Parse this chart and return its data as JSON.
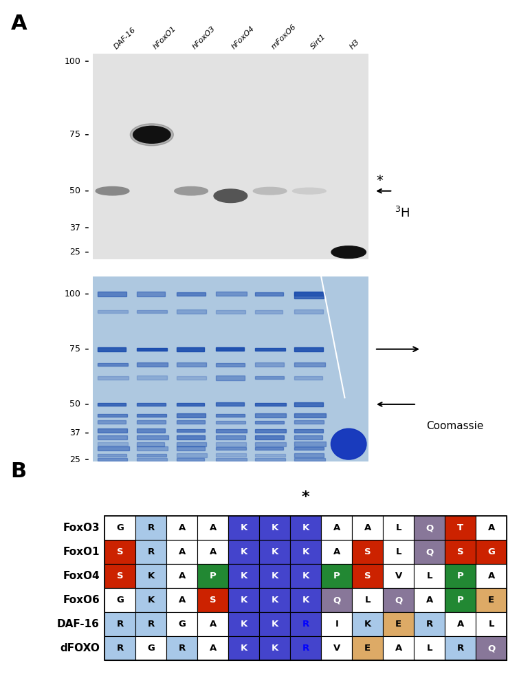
{
  "rows": [
    "FoxO3",
    "FoxO1",
    "FoxO4",
    "FoxO6",
    "DAF-16",
    "dFOXO"
  ],
  "cols": 13,
  "letters": [
    [
      "G",
      "R",
      "A",
      "A",
      "K",
      "K",
      "K",
      "A",
      "A",
      "L",
      "Q",
      "T",
      "A"
    ],
    [
      "S",
      "R",
      "A",
      "A",
      "K",
      "K",
      "K",
      "A",
      "S",
      "L",
      "Q",
      "S",
      "G"
    ],
    [
      "S",
      "K",
      "A",
      "P",
      "K",
      "K",
      "K",
      "P",
      "S",
      "V",
      "L",
      "P",
      "A"
    ],
    [
      "G",
      "K",
      "A",
      "S",
      "K",
      "K",
      "K",
      "Q",
      "L",
      "Q",
      "A",
      "P",
      "E"
    ],
    [
      "R",
      "R",
      "G",
      "A",
      "K",
      "K",
      "R",
      "I",
      "K",
      "E",
      "R",
      "A",
      "L"
    ],
    [
      "R",
      "G",
      "R",
      "A",
      "K",
      "K",
      "R",
      "V",
      "E",
      "A",
      "L",
      "R",
      "Q"
    ]
  ],
  "colors": [
    [
      "white",
      "lightblue",
      "white",
      "white",
      "blue",
      "blue",
      "blue",
      "white",
      "white",
      "white",
      "purple",
      "red",
      "white"
    ],
    [
      "red",
      "lightblue",
      "white",
      "white",
      "blue",
      "blue",
      "blue",
      "white",
      "red",
      "white",
      "purple",
      "red",
      "red"
    ],
    [
      "red",
      "lightblue",
      "white",
      "green",
      "blue",
      "blue",
      "blue",
      "green",
      "red",
      "white",
      "white",
      "green",
      "white"
    ],
    [
      "white",
      "lightblue",
      "white",
      "red",
      "blue",
      "blue",
      "blue",
      "purple",
      "white",
      "purple",
      "white",
      "green",
      "orange"
    ],
    [
      "lightblue",
      "lightblue",
      "white",
      "white",
      "blue",
      "blue",
      "blue",
      "white",
      "lightblue",
      "orange",
      "lightblue",
      "white",
      "white"
    ],
    [
      "lightblue",
      "white",
      "lightblue",
      "white",
      "blue",
      "blue",
      "blue",
      "white",
      "orange",
      "white",
      "white",
      "lightblue",
      "purple"
    ]
  ],
  "color_map": {
    "white": "#ffffff",
    "lightblue": "#a8c8e8",
    "blue": "#4444cc",
    "red": "#cc2200",
    "green": "#228833",
    "purple": "#887799",
    "orange": "#ddaa66"
  },
  "text_colors": [
    [
      "black",
      "black",
      "black",
      "black",
      "white",
      "white",
      "white",
      "black",
      "black",
      "black",
      "white",
      "white",
      "black"
    ],
    [
      "white",
      "black",
      "black",
      "black",
      "white",
      "white",
      "white",
      "black",
      "white",
      "black",
      "white",
      "white",
      "white"
    ],
    [
      "white",
      "black",
      "black",
      "white",
      "white",
      "white",
      "white",
      "white",
      "white",
      "black",
      "black",
      "white",
      "black"
    ],
    [
      "black",
      "black",
      "black",
      "white",
      "white",
      "white",
      "white",
      "white",
      "black",
      "white",
      "black",
      "white",
      "black"
    ],
    [
      "black",
      "black",
      "black",
      "black",
      "white",
      "white",
      "blue",
      "black",
      "black",
      "black",
      "black",
      "black",
      "black"
    ],
    [
      "black",
      "black",
      "black",
      "black",
      "white",
      "white",
      "blue",
      "black",
      "black",
      "black",
      "black",
      "black",
      "white"
    ]
  ],
  "lane_labels": [
    "DAF-16",
    "hFoxO1",
    "hFoxO3",
    "hFoxO4",
    "mFoxO6",
    "Sirt1",
    "H3"
  ],
  "mw_labels": [
    "100",
    "75",
    "50",
    "37",
    "25"
  ],
  "gel1_bg": "#e8e8e8",
  "gel2_bg": "#b8cce4",
  "star_col_idx": 6
}
